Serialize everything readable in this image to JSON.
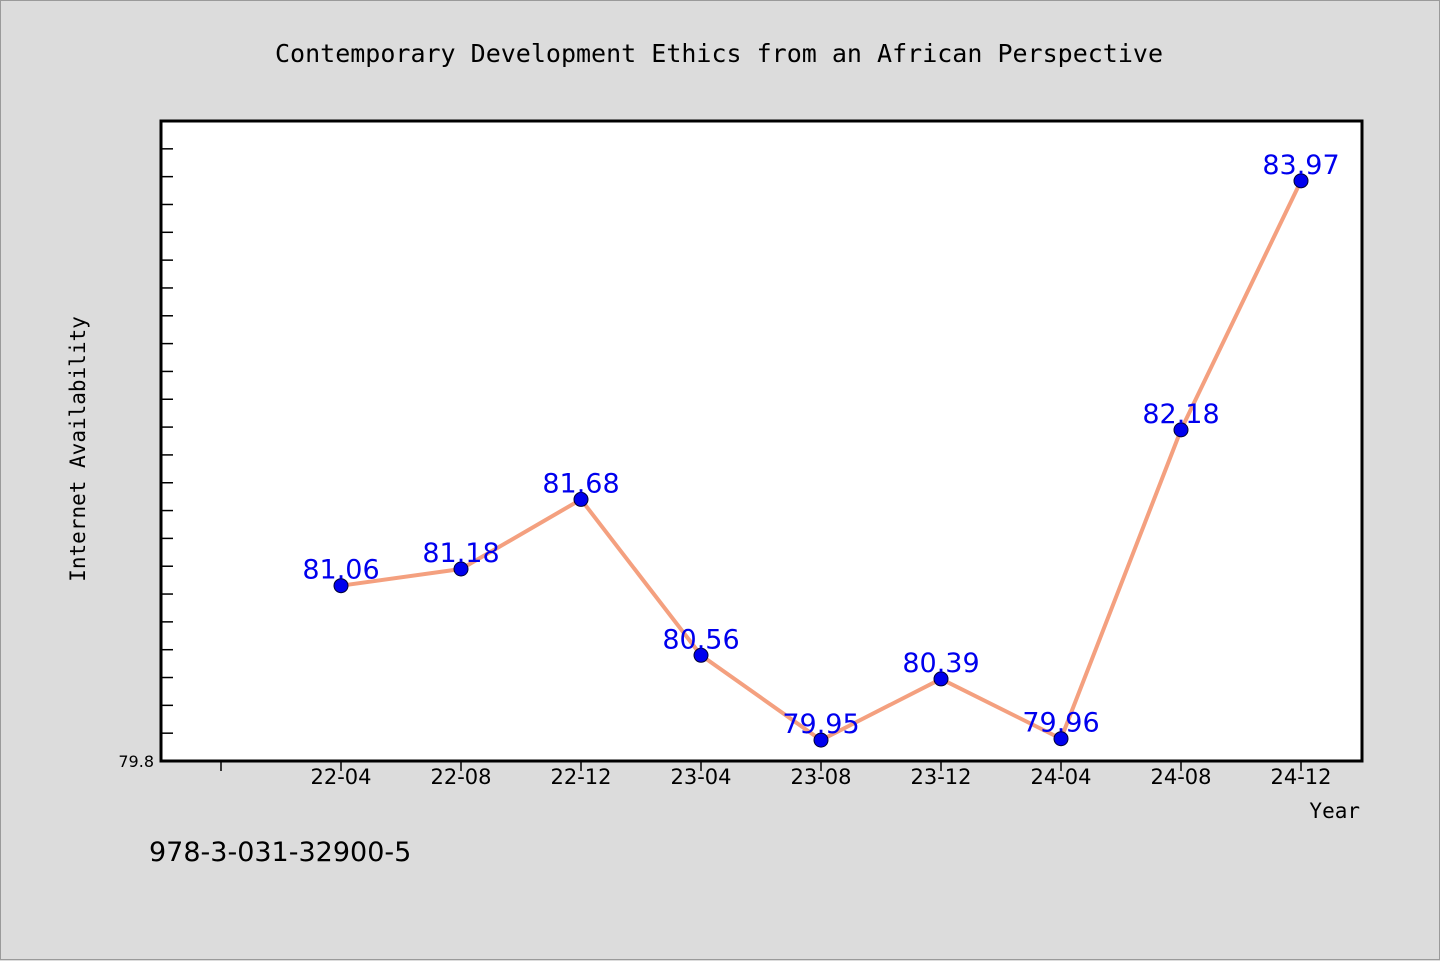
{
  "chart_data": {
    "type": "line",
    "title": "Contemporary Development Ethics from an African Perspective",
    "xlabel": "Year",
    "ylabel": "Internet Availability",
    "categories": [
      "22-04",
      "22-08",
      "22-12",
      "23-04",
      "23-08",
      "23-12",
      "24-04",
      "24-08",
      "24-12"
    ],
    "series": [
      {
        "values": [
          81.06,
          81.18,
          81.68,
          80.56,
          79.95,
          80.39,
          79.96,
          82.18,
          83.97
        ],
        "labels": [
          "81.06",
          "81.18",
          "81.68",
          "80.56",
          "79.95",
          "80.39",
          "79.96",
          "82.18",
          "83.97"
        ],
        "line_color": "#f4a07f",
        "marker_color": "#0000ee",
        "label_color": "#0000ee"
      }
    ],
    "ylim": [
      79.8,
      84.4
    ],
    "yticks": [
      "79.8"
    ],
    "grid": false,
    "legend": "none"
  },
  "footer": {
    "isbn": "978-3-031-32900-5"
  }
}
